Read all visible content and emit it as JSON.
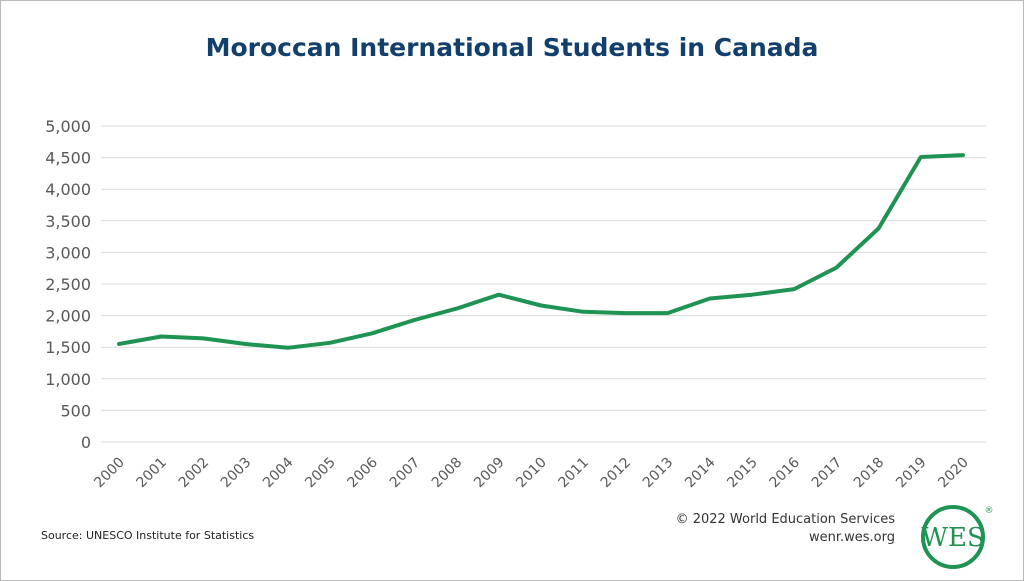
{
  "colors": {
    "line": "#1f9352",
    "title": "#123f6b",
    "grid": "#d9d9d9",
    "axis_text": "#595959",
    "logo": "#1f9352"
  },
  "chart_data": {
    "type": "line",
    "title": "Moroccan International Students in Canada",
    "xlabel": "",
    "ylabel": "",
    "categories": [
      "2000",
      "2001",
      "2002",
      "2003",
      "2004",
      "2005",
      "2006",
      "2007",
      "2008",
      "2009",
      "2010",
      "2011",
      "2012",
      "2013",
      "2014",
      "2015",
      "2016",
      "2017",
      "2018",
      "2019",
      "2020"
    ],
    "series": [
      {
        "values": [
          1550,
          1670,
          1640,
          1550,
          1490,
          1570,
          1720,
          1930,
          2110,
          2330,
          2160,
          2060,
          2040,
          2040,
          2270,
          2330,
          2420,
          2760,
          3380,
          4510,
          4540
        ]
      }
    ],
    "ylim": [
      0,
      5000
    ],
    "yticks": [
      0,
      500,
      1000,
      1500,
      2000,
      2500,
      3000,
      3500,
      4000,
      4500,
      5000
    ],
    "ytick_labels": [
      "0",
      "500",
      "1,000",
      "1,500",
      "2,000",
      "2,500",
      "3,000",
      "3,500",
      "4,000",
      "4,500",
      "5,000"
    ],
    "grid": true,
    "legend": "none"
  },
  "footer": {
    "source": "Source: UNESCO Institute for Statistics",
    "copyright": "© 2022 World Education Services",
    "website": "wenr.wes.org",
    "logo_text": "WES",
    "logo_mark": "®"
  }
}
